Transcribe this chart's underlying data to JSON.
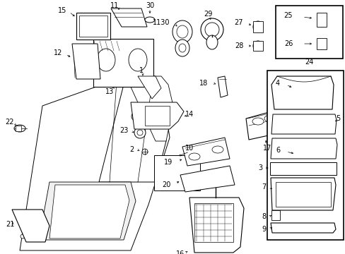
{
  "bg_color": "#ffffff",
  "fig_width": 4.89,
  "fig_height": 3.6,
  "dpi": 100,
  "image_data": "from_target"
}
